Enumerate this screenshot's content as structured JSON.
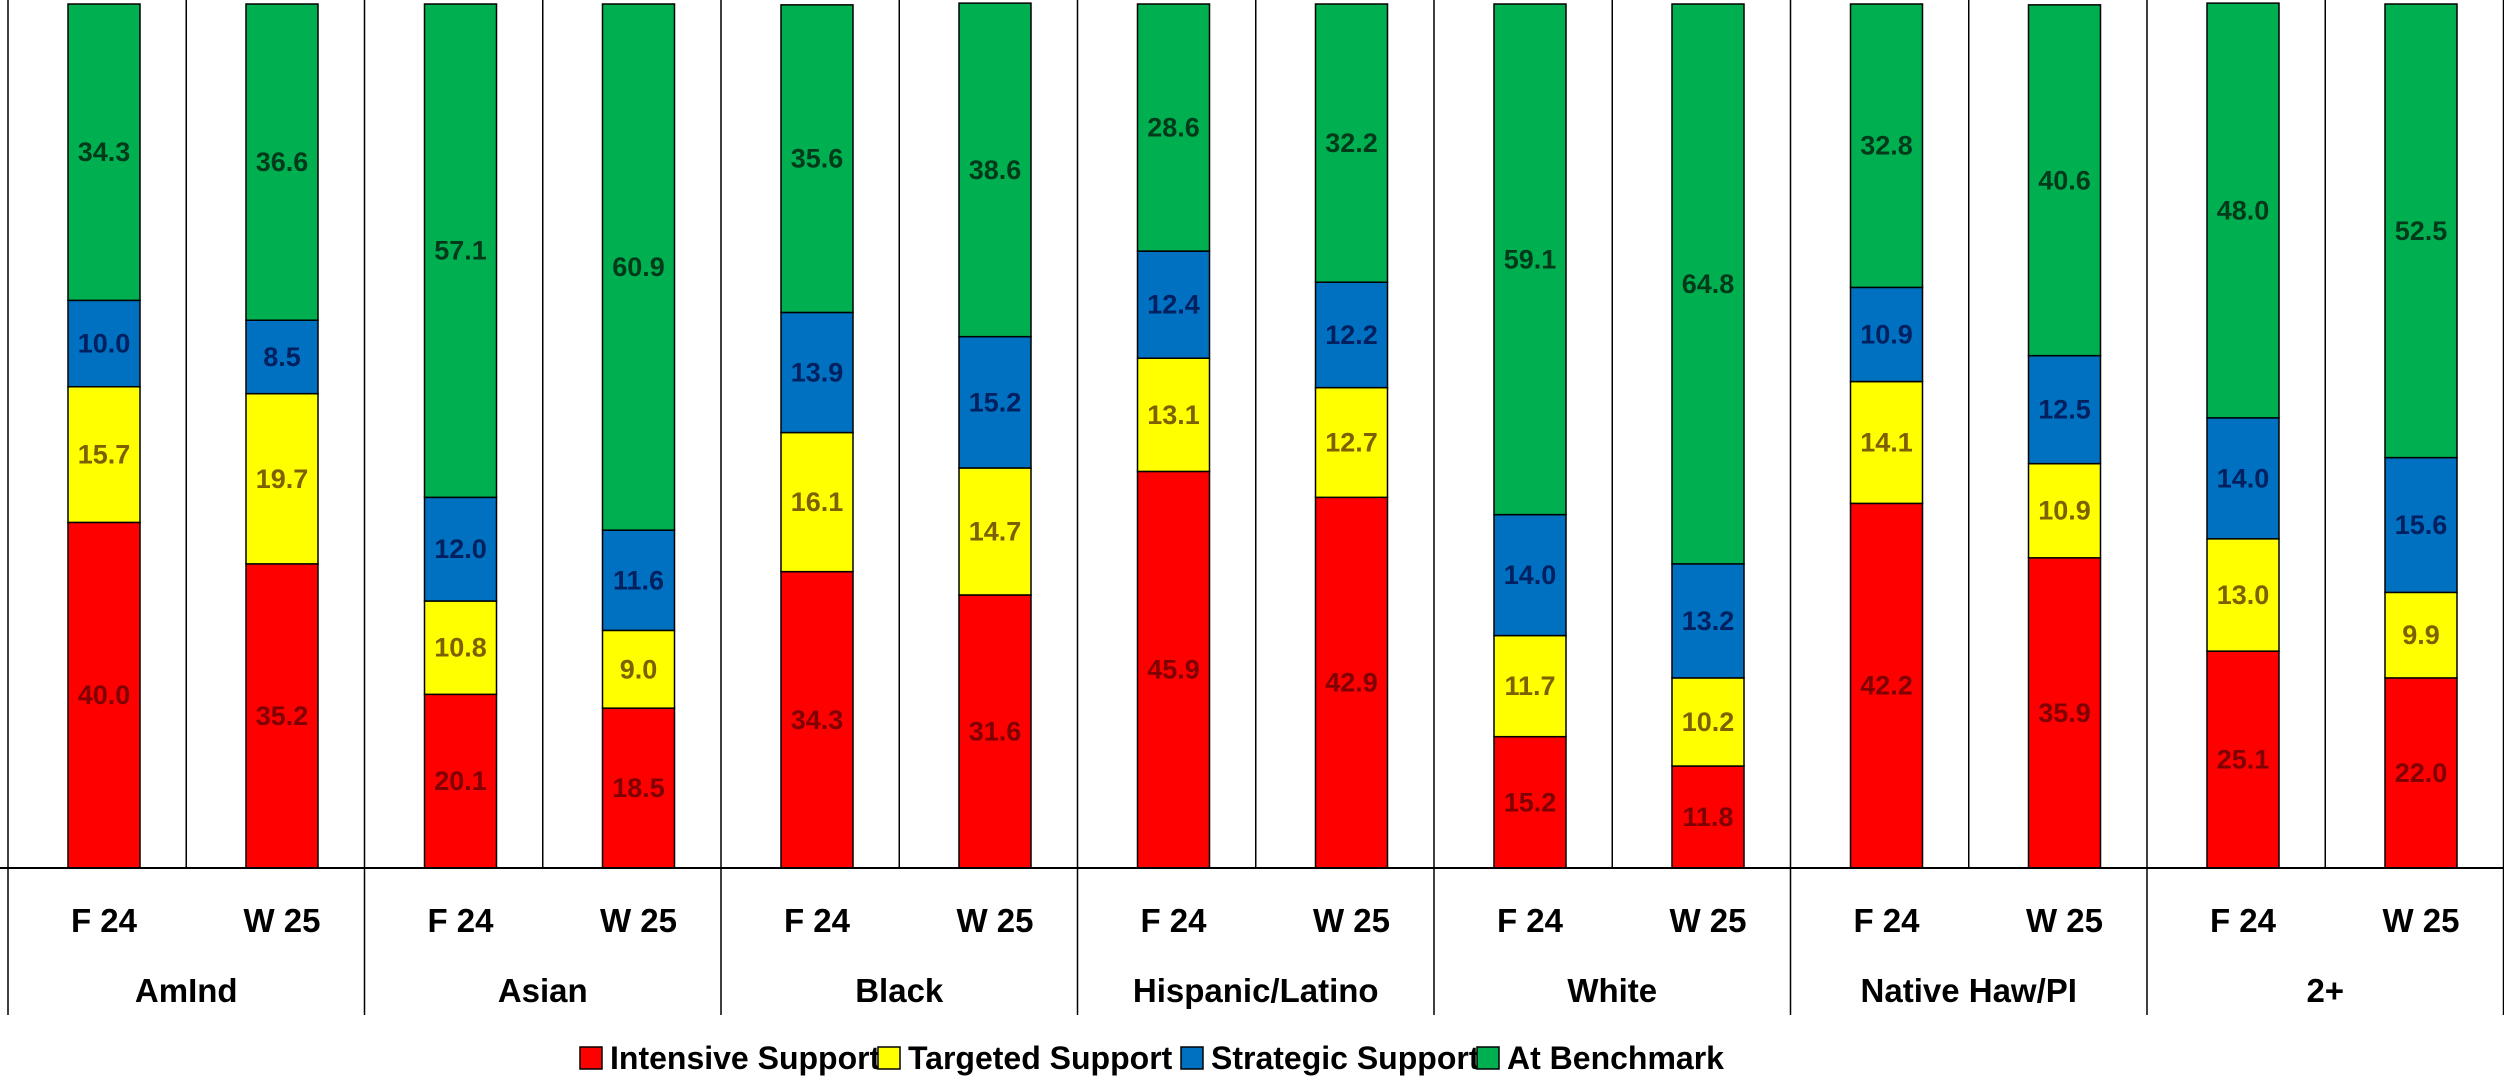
{
  "chart_data": {
    "type": "bar",
    "stacked": true,
    "ylim": [
      0,
      100
    ],
    "grid": false,
    "legend_position": "bottom",
    "groups": [
      "AmInd",
      "Asian",
      "Black",
      "Hispanic/Latino",
      "White",
      "Native Haw/PI",
      "2+"
    ],
    "periods": [
      "F 24",
      "W 25"
    ],
    "series": [
      {
        "name": "Intensive Support",
        "color": "#ff0000",
        "label_color": "#7f0000",
        "values": [
          40.0,
          35.2,
          20.1,
          18.5,
          34.3,
          31.6,
          45.9,
          42.9,
          15.2,
          11.8,
          42.2,
          35.9,
          25.1,
          22.0
        ]
      },
      {
        "name": "Targeted Support",
        "color": "#ffff00",
        "label_color": "#7f6000",
        "values": [
          15.7,
          19.7,
          10.8,
          9.0,
          16.1,
          14.7,
          13.1,
          12.7,
          11.7,
          10.2,
          14.1,
          10.9,
          13.0,
          9.9
        ]
      },
      {
        "name": "Strategic Support",
        "color": "#0070c0",
        "label_color": "#002060",
        "values": [
          10.0,
          8.5,
          12.0,
          11.6,
          13.9,
          15.2,
          12.4,
          12.2,
          14.0,
          13.2,
          10.9,
          12.5,
          14.0,
          15.6
        ]
      },
      {
        "name": "At Benchmark",
        "color": "#00b050",
        "label_color": "#003a1a",
        "values": [
          34.3,
          36.6,
          57.1,
          60.9,
          35.6,
          38.6,
          28.6,
          32.2,
          59.1,
          64.8,
          32.8,
          40.6,
          48.0,
          52.5
        ]
      }
    ]
  }
}
